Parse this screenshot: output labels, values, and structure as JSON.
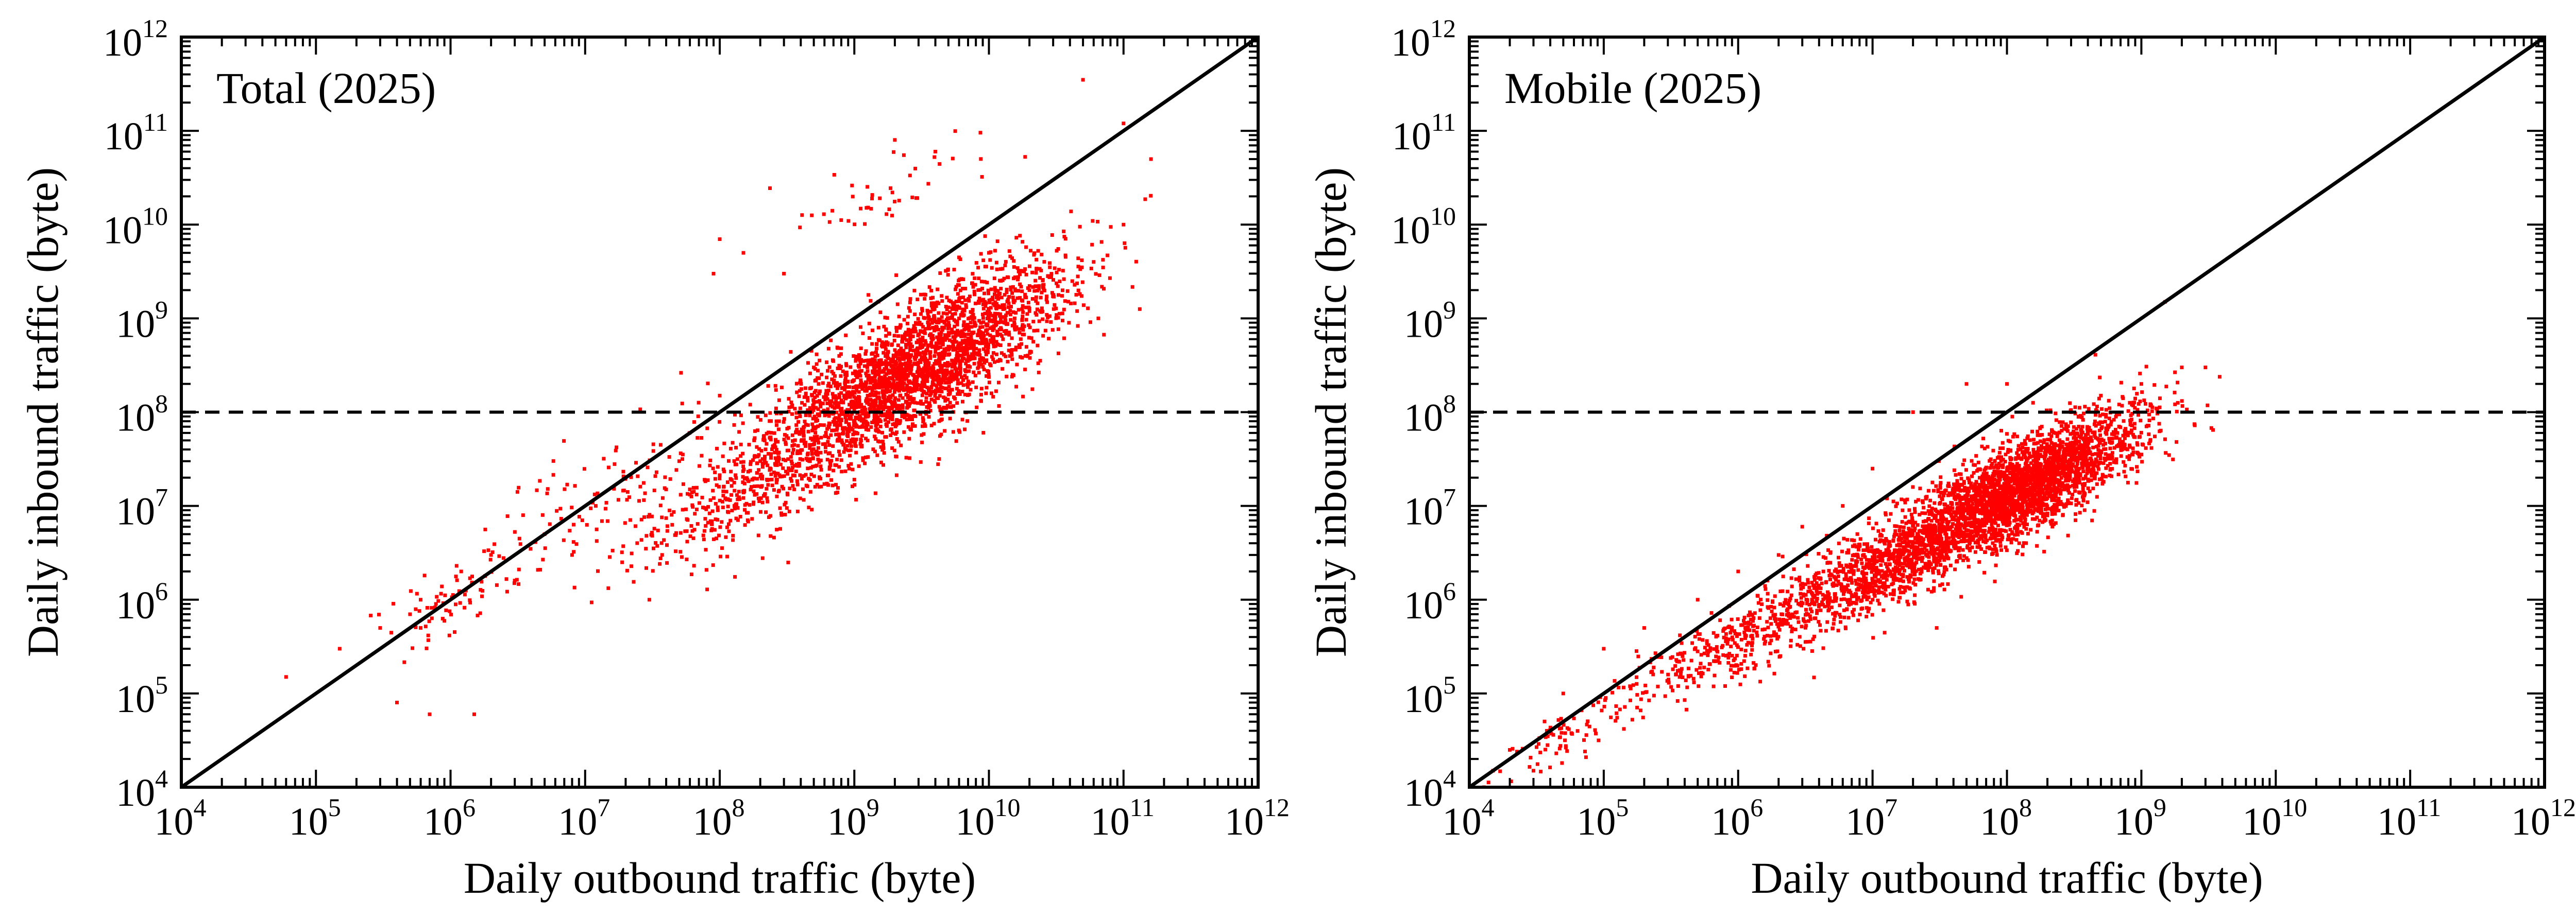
{
  "colors": {
    "points": "#ff0000",
    "lines": "#000000",
    "background": "#ffffff"
  },
  "chart_data": [
    {
      "type": "scatter",
      "panel_label": "Total (2025)",
      "xlabel": "Daily outbound traffic (byte)",
      "ylabel": "Daily inbound traffic (byte)",
      "x_scale": "log",
      "y_scale": "log",
      "xlim": [
        10000.0,
        1000000000000.0
      ],
      "ylim": [
        10000.0,
        1000000000000.0
      ],
      "x_tick_exponents": [
        4,
        5,
        6,
        7,
        8,
        9,
        10,
        11,
        12
      ],
      "y_tick_exponents": [
        4,
        5,
        6,
        7,
        8,
        9,
        10,
        11,
        12
      ],
      "tick_base": "10",
      "reference_lines": [
        {
          "kind": "diagonal",
          "style": "solid",
          "from": [
            10000.0,
            10000.0
          ],
          "to": [
            1000000000000.0,
            1000000000000.0
          ]
        },
        {
          "kind": "horizontal",
          "style": "dashed",
          "y": 100000000.0
        }
      ],
      "clusters": [
        {
          "center": [
            3000000000.0,
            300000000.0
          ],
          "spread_log10": [
            0.55,
            0.55
          ],
          "count": 2600
        },
        {
          "center": [
            200000000.0,
            20000000.0
          ],
          "spread_log10": [
            0.5,
            0.5
          ],
          "count": 500
        },
        {
          "center": [
            10000000.0,
            10000000.0
          ],
          "spread_log10": [
            0.5,
            0.5
          ],
          "count": 110
        },
        {
          "center": [
            1000000.0,
            1000000.0
          ],
          "spread_log10": [
            0.3,
            0.3
          ],
          "count": 60
        },
        {
          "center": [
            1500000000.0,
            20000000000.0
          ],
          "spread_log10": [
            0.4,
            0.35
          ],
          "count": 45
        }
      ],
      "points": [
        [
          60000.0,
          150000.0
        ],
        [
          150000.0,
          300000.0
        ],
        [
          300000.0,
          500000.0
        ],
        [
          500000.0,
          700000.0
        ],
        [
          600000.0,
          500000.0
        ],
        [
          400000.0,
          80000.0
        ],
        [
          700000.0,
          60000.0
        ],
        [
          1500000.0,
          60000.0
        ],
        [
          600000.0,
          1000000.0
        ],
        [
          1200000.0,
          2000000.0
        ],
        [
          2000000.0,
          3000000.0
        ],
        [
          3000000.0,
          1600000.0
        ],
        [
          5000000.0,
          5000000.0
        ],
        [
          8000000.0,
          3000000.0
        ],
        [
          12000000.0,
          10000000.0
        ],
        [
          20000000.0,
          20000000.0
        ],
        [
          30000000.0,
          1000000.0
        ],
        [
          50000000.0,
          30000000.0
        ],
        [
          90000000.0,
          3000000000.0
        ],
        [
          100000000.0,
          150000000.0
        ],
        [
          100000000.0,
          7000000000.0
        ],
        [
          150000000.0,
          5000000000.0
        ],
        [
          300000000.0,
          3000000000.0
        ],
        [
          4000000000.0,
          60000000000.0
        ],
        [
          2000000000.0,
          80000000000.0
        ],
        [
          50000000000.0,
          350000000000.0
        ],
        [
          100000000000.0,
          120000000000.0
        ],
        [
          60000000000.0,
          4000000000.0
        ],
        [
          100000000000.0,
          10000000000.0
        ],
        [
          160000000000.0,
          50000000000.0
        ],
        [
          10000000000.0,
          5000000000.0
        ],
        [
          6000000000.0,
          1000000000.0
        ],
        [
          10000000000.0,
          1000000000.0
        ],
        [
          20000000000.0,
          2000000000.0
        ],
        [
          5000000000.0,
          500000000.0
        ],
        [
          3000000000.0,
          300000000.0
        ],
        [
          800000000.0,
          100000000.0
        ],
        [
          500000000.0,
          300000000.0
        ],
        [
          200000000.0,
          30000000.0
        ],
        [
          40000000.0,
          15000000.0
        ]
      ]
    },
    {
      "type": "scatter",
      "panel_label": "Mobile (2025)",
      "xlabel": "Daily outbound traffic (byte)",
      "ylabel": "Daily inbound traffic (byte)",
      "x_scale": "log",
      "y_scale": "log",
      "xlim": [
        10000.0,
        1000000000000.0
      ],
      "ylim": [
        10000.0,
        1000000000000.0
      ],
      "x_tick_exponents": [
        4,
        5,
        6,
        7,
        8,
        9,
        10,
        11,
        12
      ],
      "y_tick_exponents": [
        4,
        5,
        6,
        7,
        8,
        9,
        10,
        11,
        12
      ],
      "tick_base": "10",
      "reference_lines": [
        {
          "kind": "diagonal",
          "style": "solid",
          "from": [
            10000.0,
            10000.0
          ],
          "to": [
            1000000000000.0,
            1000000000000.0
          ]
        },
        {
          "kind": "horizontal",
          "style": "dashed",
          "y": 100000000.0
        }
      ],
      "clusters": [
        {
          "center": [
            120000000.0,
            15000000.0
          ],
          "spread_log10": [
            0.45,
            0.4
          ],
          "count": 2800
        },
        {
          "center": [
            10000000.0,
            2000000.0
          ],
          "spread_log10": [
            0.45,
            0.35
          ],
          "count": 900
        },
        {
          "center": [
            800000.0,
            300000.0
          ],
          "spread_log10": [
            0.4,
            0.3
          ],
          "count": 300
        },
        {
          "center": [
            60000.0,
            40000.0
          ],
          "spread_log10": [
            0.3,
            0.25
          ],
          "count": 80
        }
      ],
      "points": [
        [
          15000.0,
          15000.0
        ],
        [
          20000.0,
          25000.0
        ],
        [
          30000.0,
          15000.0
        ],
        [
          50000.0,
          100000.0
        ],
        [
          100000.0,
          300000.0
        ],
        [
          200000.0,
          500000.0
        ],
        [
          500000.0,
          1000000.0
        ],
        [
          1000000.0,
          2000000.0
        ],
        [
          2000000.0,
          3000000.0
        ],
        [
          3000000.0,
          6000000.0
        ],
        [
          6000000.0,
          10000000.0
        ],
        [
          10000000.0,
          25000000.0
        ],
        [
          20000000.0,
          100000000.0
        ],
        [
          50000000.0,
          200000000.0
        ],
        [
          150000000.0,
          10000000.0
        ],
        [
          100000000.0,
          200000000.0
        ],
        [
          300000000.0,
          100000000.0
        ],
        [
          500000000.0,
          150000000.0
        ],
        [
          1000000000.0,
          200000000.0
        ],
        [
          1500000000.0,
          1500000000.0
        ],
        [
          2000000000.0,
          300000000.0
        ],
        [
          3000000000.0,
          300000000.0
        ],
        [
          800000.0,
          120000.0
        ],
        [
          12000000.0,
          1500000.0
        ],
        [
          30000000.0,
          500000.0
        ]
      ]
    }
  ]
}
